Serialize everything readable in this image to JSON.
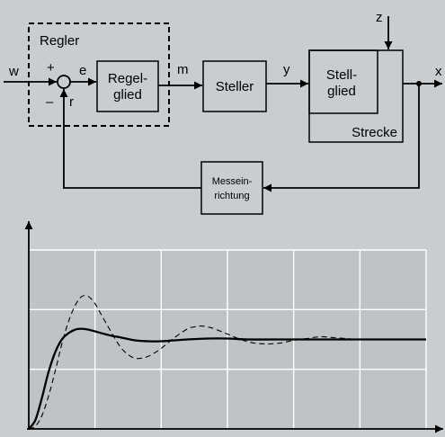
{
  "block_diagram": {
    "controller_label": "Regler",
    "blocks": {
      "regelglied": [
        "Regel-",
        "glied"
      ],
      "steller": [
        "Steller"
      ],
      "stellglied": [
        "Stell-",
        "glied"
      ],
      "strecke": [
        "Strecke"
      ],
      "messeinrichtung": [
        "Messein-",
        "richtung"
      ]
    },
    "signals": {
      "w": "w",
      "e": "e",
      "m": "m",
      "y": "y",
      "x": "x",
      "z": "z",
      "r": "r",
      "plus": "+",
      "minus": "–"
    }
  },
  "chart_data": {
    "type": "line",
    "title": "",
    "xlabel": "",
    "ylabel": "",
    "xlim": [
      0,
      6
    ],
    "ylim": [
      0,
      2
    ],
    "grid": true,
    "series": [
      {
        "style": "solid",
        "color": "#000000",
        "points": [
          [
            0,
            0
          ],
          [
            0.1,
            0.1
          ],
          [
            0.2,
            0.35
          ],
          [
            0.3,
            0.64
          ],
          [
            0.4,
            0.86
          ],
          [
            0.5,
            1.0
          ],
          [
            0.6,
            1.07
          ],
          [
            0.7,
            1.11
          ],
          [
            0.8,
            1.12
          ],
          [
            0.9,
            1.11
          ],
          [
            1.0,
            1.09
          ],
          [
            1.2,
            1.05
          ],
          [
            1.4,
            1.02
          ],
          [
            1.6,
            0.99
          ],
          [
            1.8,
            0.98
          ],
          [
            2.0,
            0.98
          ],
          [
            2.2,
            0.99
          ],
          [
            2.4,
            1.0
          ],
          [
            2.7,
            1.01
          ],
          [
            3.0,
            1.01
          ],
          [
            3.3,
            1.0
          ],
          [
            3.7,
            1.0
          ],
          [
            4.2,
            1.0
          ],
          [
            5.0,
            1.0
          ],
          [
            6.0,
            1.0
          ]
        ]
      },
      {
        "style": "dashed",
        "color": "#000000",
        "points": [
          [
            0,
            0
          ],
          [
            0.1,
            0.03
          ],
          [
            0.2,
            0.15
          ],
          [
            0.3,
            0.37
          ],
          [
            0.4,
            0.65
          ],
          [
            0.5,
            0.95
          ],
          [
            0.6,
            1.2
          ],
          [
            0.7,
            1.38
          ],
          [
            0.8,
            1.48
          ],
          [
            0.9,
            1.48
          ],
          [
            1.0,
            1.4
          ],
          [
            1.1,
            1.27
          ],
          [
            1.2,
            1.14
          ],
          [
            1.3,
            1.01
          ],
          [
            1.4,
            0.9
          ],
          [
            1.5,
            0.83
          ],
          [
            1.6,
            0.79
          ],
          [
            1.7,
            0.79
          ],
          [
            1.8,
            0.81
          ],
          [
            1.9,
            0.85
          ],
          [
            2.0,
            0.9
          ],
          [
            2.2,
            1.02
          ],
          [
            2.4,
            1.12
          ],
          [
            2.5,
            1.14
          ],
          [
            2.6,
            1.15
          ],
          [
            2.7,
            1.14
          ],
          [
            2.8,
            1.12
          ],
          [
            3.0,
            1.06
          ],
          [
            3.2,
            1.0
          ],
          [
            3.4,
            0.96
          ],
          [
            3.6,
            0.95
          ],
          [
            3.8,
            0.96
          ],
          [
            4.0,
            0.99
          ],
          [
            4.2,
            1.01
          ],
          [
            4.4,
            1.03
          ],
          [
            4.6,
            1.02
          ],
          [
            4.8,
            1.01
          ],
          [
            5.0,
            1.0
          ],
          [
            5.5,
            1.0
          ],
          [
            6.0,
            1.0
          ]
        ]
      }
    ]
  }
}
